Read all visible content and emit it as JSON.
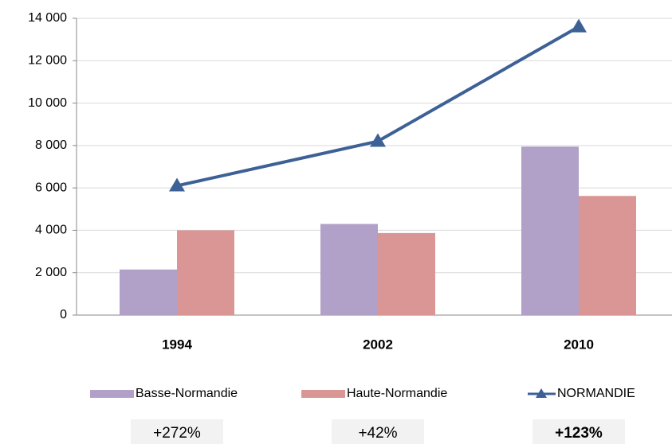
{
  "chart_data": {
    "type": "bar_line",
    "categories": [
      "1994",
      "2002",
      "2010"
    ],
    "series": [
      {
        "name": "Basse-Normandie",
        "type": "bar",
        "color": "#b1a0c7",
        "values": [
          2150,
          4300,
          7950
        ]
      },
      {
        "name": "Haute-Normandie",
        "type": "bar",
        "color": "#d99694",
        "values": [
          4000,
          3870,
          5620
        ]
      },
      {
        "name": "NORMANDIE",
        "type": "line",
        "color": "#3d6196",
        "values": [
          6100,
          8200,
          13600
        ]
      }
    ],
    "ylim": [
      0,
      14000
    ],
    "yticks": [
      0,
      {
        "value": 2000,
        "label": "2 000"
      },
      {
        "value": 4000,
        "label": "4 000"
      },
      {
        "value": 6000,
        "label": "6 000"
      },
      {
        "value": 8000,
        "label": "8 000"
      },
      {
        "value": 10000,
        "label": "10 000"
      },
      {
        "value": 12000,
        "label": "12 000"
      },
      {
        "value": 14000,
        "label": "14 000"
      }
    ],
    "grid": true,
    "legend": "bottom",
    "annotations": [
      "+272%",
      "+42%",
      "+123%"
    ]
  }
}
